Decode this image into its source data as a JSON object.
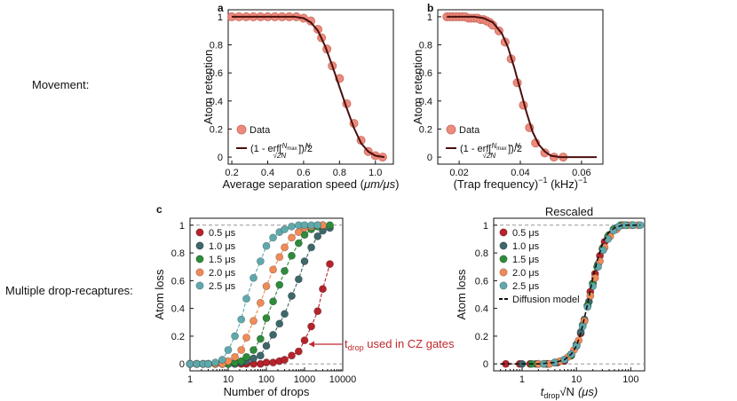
{
  "row_labels": {
    "movement": "Movement:",
    "drop": "Multiple drop-recaptures:"
  },
  "colors": {
    "data_fill": "#ec8a7c",
    "data_edge": "#c96a5d",
    "fit": "#4a0f0f",
    "s05": "#b5232b",
    "s10": "#3e6769",
    "s15": "#2e8b3c",
    "s20": "#f08a56",
    "s25": "#5fa9ac",
    "annotation": "#c0272d"
  },
  "annotation": {
    "main": "t",
    "sub": "drop",
    "rest": " used in CZ gates"
  },
  "chart_data": [
    {
      "type": "scatter",
      "panel": "a",
      "xlabel_text": "Average separation speed (",
      "xlabel_unit": "μm/μs",
      "xlabel_close": ")",
      "ylabel": "Atom retention",
      "xlim": [
        0.18,
        1.1
      ],
      "ylim": [
        -0.05,
        1.05
      ],
      "xticks": [
        "0.2",
        "0.4",
        "0.6",
        "0.8",
        "1.0"
      ],
      "xtick_values": [
        0.2,
        0.4,
        0.6,
        0.8,
        1.0
      ],
      "yticks": [
        "0",
        "0.2",
        "0.4",
        "0.6",
        "0.8",
        "1"
      ],
      "ytick_values": [
        0,
        0.2,
        0.4,
        0.6,
        0.8,
        1
      ],
      "legend": {
        "data": "Data",
        "fit_prefix": "(1 - erf[",
        "fit_num": "N",
        "fit_num_sub": "max",
        "fit_num_rest": " − N",
        "fit_den": "√2N",
        "fit_suffix": "])/2"
      },
      "series": [
        {
          "role": "data",
          "x": [
            0.2,
            0.24,
            0.28,
            0.32,
            0.36,
            0.4,
            0.44,
            0.48,
            0.52,
            0.56,
            0.6,
            0.64,
            0.68,
            0.7,
            0.73,
            0.76,
            0.8,
            0.84,
            0.88,
            0.92,
            0.96,
            1.0,
            1.04
          ],
          "y": [
            1.0,
            1.0,
            1.0,
            1.0,
            1.0,
            1.0,
            1.0,
            1.0,
            1.0,
            1.0,
            0.99,
            0.97,
            0.91,
            0.85,
            0.77,
            0.65,
            0.56,
            0.38,
            0.24,
            0.12,
            0.04,
            0.01,
            0.0
          ]
        },
        {
          "role": "fit",
          "x": [
            0.2,
            0.4,
            0.55,
            0.6,
            0.64,
            0.68,
            0.72,
            0.76,
            0.8,
            0.84,
            0.88,
            0.92,
            0.96,
            1.0,
            1.05
          ],
          "y": [
            1.0,
            1.0,
            1.0,
            0.99,
            0.96,
            0.9,
            0.79,
            0.65,
            0.5,
            0.35,
            0.21,
            0.1,
            0.04,
            0.01,
            0.0
          ]
        }
      ]
    },
    {
      "type": "scatter",
      "panel": "b",
      "xlabel_text": "(Trap frequency)",
      "xlabel_sup": "−1",
      "xlabel_unit": " (kHz)",
      "xlabel_unit_sup": "−1",
      "ylabel": "Atom retention",
      "xlim": [
        0.013,
        0.067
      ],
      "ylim": [
        -0.05,
        1.05
      ],
      "xticks": [
        "0.02",
        "0.04",
        "0.06"
      ],
      "xtick_values": [
        0.02,
        0.04,
        0.06
      ],
      "yticks": [
        "0",
        "0.2",
        "0.4",
        "0.6",
        "0.8",
        "1"
      ],
      "ytick_values": [
        0,
        0.2,
        0.4,
        0.6,
        0.8,
        1
      ],
      "legend": {
        "data": "Data",
        "fit_prefix": "(1 - erf[",
        "fit_num": "N",
        "fit_num_sub": "max",
        "fit_num_rest": " − N",
        "fit_den": "√2N",
        "fit_suffix": "])/2"
      },
      "series": [
        {
          "role": "data",
          "x": [
            0.016,
            0.017,
            0.018,
            0.019,
            0.02,
            0.021,
            0.022,
            0.023,
            0.024,
            0.025,
            0.026,
            0.027,
            0.028,
            0.029,
            0.03,
            0.031,
            0.033,
            0.035,
            0.037,
            0.039,
            0.041,
            0.043,
            0.045,
            0.048,
            0.051,
            0.054
          ],
          "y": [
            1.0,
            1.0,
            1.0,
            1.0,
            1.0,
            1.0,
            1.0,
            0.99,
            0.99,
            0.99,
            0.99,
            0.98,
            0.98,
            0.97,
            0.96,
            0.94,
            0.9,
            0.82,
            0.7,
            0.53,
            0.37,
            0.21,
            0.1,
            0.03,
            0.0,
            0.0
          ]
        },
        {
          "role": "fit",
          "x": [
            0.016,
            0.025,
            0.028,
            0.031,
            0.034,
            0.036,
            0.038,
            0.04,
            0.042,
            0.044,
            0.046,
            0.048,
            0.05,
            0.053,
            0.058,
            0.065
          ],
          "y": [
            1.0,
            1.0,
            0.99,
            0.96,
            0.88,
            0.78,
            0.64,
            0.48,
            0.32,
            0.18,
            0.09,
            0.04,
            0.01,
            0.0,
            0.0,
            0.0
          ]
        }
      ]
    },
    {
      "type": "line",
      "panel": "c",
      "xlabel": "Number of drops",
      "ylabel": "Atom loss",
      "xscale": "log",
      "xlim": [
        1,
        10000
      ],
      "ylim": [
        -0.05,
        1.05
      ],
      "xticks": [
        "1",
        "10",
        "100",
        "1000",
        "10000"
      ],
      "xtick_values": [
        1,
        10,
        100,
        1000,
        10000
      ],
      "yticks": [
        "0",
        "0.2",
        "0.4",
        "0.6",
        "0.8",
        "1"
      ],
      "ytick_values": [
        0,
        0.2,
        0.4,
        0.6,
        0.8,
        1
      ],
      "series": [
        {
          "name": "0.5 μs",
          "color": "s05",
          "x": [
            1,
            1.5,
            2.2,
            3,
            4.6,
            7,
            10,
            15,
            22,
            30,
            46,
            70,
            100,
            150,
            220,
            300,
            460,
            700,
            1000,
            1500,
            2200,
            3000,
            4600
          ],
          "y": [
            0,
            0,
            0,
            0,
            0,
            0,
            0,
            0,
            0,
            0,
            0,
            0,
            0.01,
            0.01,
            0.02,
            0.03,
            0.06,
            0.09,
            0.17,
            0.27,
            0.38,
            0.54,
            0.72
          ]
        },
        {
          "name": "1.0 μs",
          "color": "s10",
          "x": [
            1,
            1.5,
            2.2,
            3,
            4.6,
            7,
            10,
            15,
            22,
            30,
            46,
            70,
            100,
            150,
            220,
            300,
            460,
            700,
            1000,
            1500,
            2200,
            3000,
            4600
          ],
          "y": [
            0,
            0,
            0,
            0,
            0,
            0,
            0,
            0,
            0.01,
            0.02,
            0.04,
            0.06,
            0.13,
            0.21,
            0.29,
            0.36,
            0.49,
            0.61,
            0.74,
            0.84,
            0.92,
            0.96,
            0.98
          ]
        },
        {
          "name": "1.5 μs",
          "color": "s15",
          "x": [
            1,
            1.5,
            2.2,
            3,
            4.6,
            7,
            10,
            15,
            22,
            30,
            46,
            70,
            100,
            150,
            220,
            300,
            460,
            700,
            1000,
            1500,
            2200,
            3000,
            4600
          ],
          "y": [
            0,
            0,
            0,
            0,
            0,
            0,
            0,
            0.01,
            0.02,
            0.05,
            0.1,
            0.18,
            0.33,
            0.45,
            0.57,
            0.67,
            0.78,
            0.87,
            0.93,
            0.97,
            0.99,
            1.0,
            1.0
          ]
        },
        {
          "name": "2.0 μs",
          "color": "s20",
          "x": [
            1,
            1.5,
            2.2,
            3,
            4.6,
            7,
            10,
            15,
            22,
            30,
            46,
            70,
            100,
            150,
            220,
            300,
            460,
            700,
            1000,
            1500,
            2200,
            3000
          ],
          "y": [
            0,
            0,
            0,
            0,
            0,
            0,
            0.02,
            0.05,
            0.1,
            0.19,
            0.31,
            0.44,
            0.56,
            0.68,
            0.77,
            0.84,
            0.91,
            0.95,
            0.98,
            0.99,
            1.0,
            1.0
          ]
        },
        {
          "name": "2.5 μs",
          "color": "s25",
          "x": [
            1,
            1.5,
            2.2,
            3,
            4.6,
            7,
            10,
            15,
            22,
            30,
            46,
            70,
            100,
            150,
            220,
            300,
            460,
            700,
            1000,
            1500,
            2200
          ],
          "y": [
            0,
            0,
            0,
            0,
            0.01,
            0.03,
            0.1,
            0.2,
            0.32,
            0.47,
            0.62,
            0.74,
            0.85,
            0.91,
            0.95,
            0.97,
            0.99,
            1.0,
            1.0,
            1.0,
            1.0
          ]
        }
      ]
    },
    {
      "type": "line",
      "panel": "rescaled",
      "title": "Rescaled",
      "xlabel_main": "t",
      "xlabel_sub": "drop",
      "xlabel_sqrt": "√N",
      "xlabel_unit": "(μs)",
      "ylabel": "Atom loss",
      "xscale": "log",
      "xlim": [
        0.3,
        180
      ],
      "ylim": [
        -0.05,
        1.05
      ],
      "xticks": [
        "1",
        "10",
        "100"
      ],
      "xtick_values": [
        1,
        10,
        100
      ],
      "yticks": [
        "0",
        "0.2",
        "0.4",
        "0.6",
        "0.8",
        "1"
      ],
      "ytick_values": [
        0,
        0.2,
        0.4,
        0.6,
        0.8,
        1
      ],
      "model_name": "Diffusion model",
      "model": {
        "x": [
          0.4,
          1,
          2,
          4,
          6,
          8,
          10,
          12,
          14,
          16,
          18,
          20,
          24,
          28,
          32,
          40,
          50,
          70,
          100,
          150
        ],
        "y": [
          0,
          0,
          0,
          0.01,
          0.03,
          0.07,
          0.13,
          0.22,
          0.33,
          0.43,
          0.53,
          0.62,
          0.74,
          0.83,
          0.89,
          0.95,
          0.98,
          1.0,
          1.0,
          1.0
        ]
      },
      "series": [
        {
          "name": "0.5 μs",
          "color": "s05",
          "x": [
            0.5,
            0.9,
            1.4,
            2.0,
            3.0,
            4.5,
            6,
            8,
            10,
            12,
            14,
            16,
            18,
            22,
            27,
            33
          ],
          "y": [
            0,
            0,
            0,
            0,
            0,
            0.01,
            0.02,
            0.06,
            0.13,
            0.22,
            0.31,
            0.42,
            0.52,
            0.65,
            0.78,
            0.88
          ]
        },
        {
          "name": "1.0 μs",
          "color": "s10",
          "x": [
            1.0,
            1.8,
            2.8,
            4,
            6,
            8,
            10,
            12,
            14,
            17,
            20,
            25,
            31,
            40,
            55,
            70
          ],
          "y": [
            0,
            0,
            0,
            0.01,
            0.03,
            0.07,
            0.14,
            0.23,
            0.32,
            0.45,
            0.58,
            0.72,
            0.84,
            0.93,
            0.98,
            1.0
          ]
        },
        {
          "name": "1.5 μs",
          "color": "s15",
          "x": [
            1.5,
            2.5,
            4,
            6,
            8,
            10,
            13,
            16,
            20,
            24,
            30,
            38,
            48,
            65,
            85,
            110
          ],
          "y": [
            0,
            0,
            0.01,
            0.03,
            0.06,
            0.13,
            0.28,
            0.42,
            0.58,
            0.7,
            0.83,
            0.92,
            0.97,
            1.0,
            1.0,
            1.0
          ]
        },
        {
          "name": "2.0 μs",
          "color": "s20",
          "x": [
            2.0,
            3.2,
            5,
            7,
            9,
            11,
            14,
            18,
            22,
            27,
            33,
            42,
            55,
            75,
            100,
            135
          ],
          "y": [
            0,
            0,
            0.02,
            0.05,
            0.1,
            0.17,
            0.31,
            0.49,
            0.62,
            0.74,
            0.84,
            0.92,
            0.97,
            1.0,
            1.0,
            1.0
          ]
        },
        {
          "name": "2.5 μs",
          "color": "s25",
          "x": [
            2.5,
            4,
            6,
            8,
            10,
            13,
            16,
            20,
            25,
            31,
            38,
            48,
            60,
            80,
            110,
            150
          ],
          "y": [
            0,
            0.01,
            0.03,
            0.07,
            0.13,
            0.27,
            0.41,
            0.56,
            0.7,
            0.82,
            0.9,
            0.96,
            0.99,
            1.0,
            1.0,
            1.0
          ]
        }
      ]
    }
  ]
}
